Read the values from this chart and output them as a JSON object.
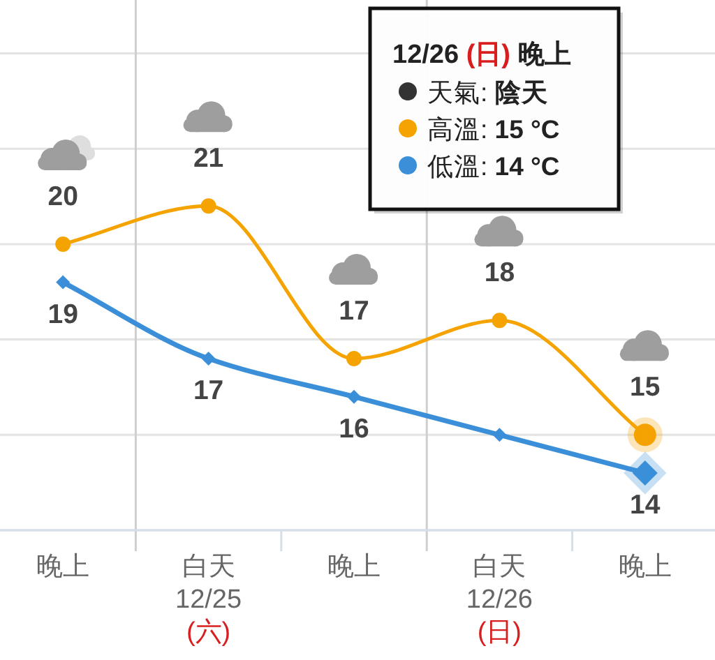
{
  "chart_data": {
    "type": "line",
    "categories": [
      "晚上",
      "白天\n12/25\n(六)",
      "晚上",
      "白天\n12/26\n(日)",
      "晚上"
    ],
    "series": [
      {
        "color": "#f5a300",
        "marker": "circle",
        "values": [
          20,
          21,
          17,
          18,
          15
        ],
        "value_labels": [
          "20",
          "21",
          "17",
          "18",
          "15"
        ]
      },
      {
        "color": "#3a8fd8",
        "marker": "diamond",
        "values": [
          19,
          17,
          16,
          15,
          14
        ],
        "value_labels": [
          "19",
          "17",
          "16",
          null,
          "14"
        ]
      }
    ],
    "ylim": [
      12.5,
      26.4
    ],
    "yticks": [
      {
        "value": 12.5,
        "label": null
      },
      {
        "value": 15,
        "label": null
      },
      {
        "value": 17.5,
        "label": null
      },
      {
        "value": 20,
        "label": null
      },
      {
        "value": 22.5,
        "label": null
      },
      {
        "value": 25,
        "label": null
      }
    ],
    "grid": true,
    "tick_labels": "x",
    "line_style": "solid",
    "annotations": [
      "12/26 (日) 晚上",
      "天氣: 陰天",
      "高溫: 15 °C",
      "低溫: 14 °C"
    ]
  }
}
